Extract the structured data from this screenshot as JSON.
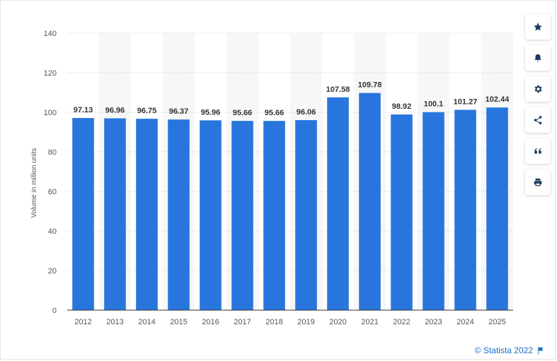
{
  "chart_data": {
    "type": "bar",
    "title": "",
    "xlabel": "",
    "ylabel": "Volume in million units",
    "ylim": [
      0,
      140
    ],
    "yticks": [
      0,
      20,
      40,
      60,
      80,
      100,
      120,
      140
    ],
    "categories": [
      "2012",
      "2013",
      "2014",
      "2015",
      "2016",
      "2017",
      "2018",
      "2019",
      "2020",
      "2021",
      "2022",
      "2023",
      "2024",
      "2025"
    ],
    "values": [
      97.13,
      96.96,
      96.75,
      96.37,
      95.96,
      95.66,
      95.66,
      96.06,
      107.58,
      109.78,
      98.92,
      100.1,
      101.27,
      102.44
    ],
    "value_labels": [
      "97.13",
      "96.96",
      "96.75",
      "96.37",
      "95.96",
      "95.66",
      "95.66",
      "96.06",
      "107.58",
      "109.78",
      "98.92",
      "100.1",
      "101.27",
      "102.44"
    ],
    "bar_color": "#2876dd",
    "grid": true
  },
  "toolbar": {
    "buttons": [
      {
        "name": "favorite-button",
        "icon": "star-icon"
      },
      {
        "name": "notification-button",
        "icon": "bell-icon"
      },
      {
        "name": "settings-button",
        "icon": "gear-icon"
      },
      {
        "name": "share-button",
        "icon": "share-icon"
      },
      {
        "name": "cite-button",
        "icon": "quote-icon"
      },
      {
        "name": "print-button",
        "icon": "printer-icon"
      }
    ]
  },
  "credit": {
    "text": "© Statista 2022",
    "icon": "flag-icon"
  }
}
